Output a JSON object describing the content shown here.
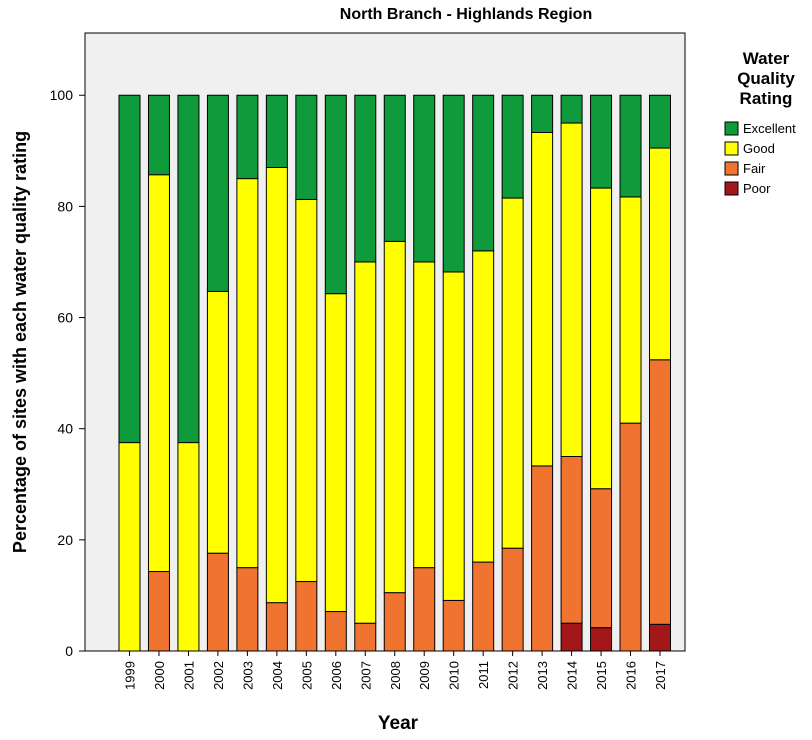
{
  "chart_data": {
    "type": "stacked_bar",
    "title": "North Branch - Highlands Region",
    "x_label": "Year",
    "y_label": "Percentage of sites with each water quality rating",
    "legend_title": [
      "Water",
      "Quality",
      "Rating"
    ],
    "categories": [
      "1999",
      "2000",
      "2001",
      "2002",
      "2003",
      "2004",
      "2005",
      "2006",
      "2007",
      "2008",
      "2009",
      "2010",
      "2011",
      "2012",
      "2013",
      "2014",
      "2015",
      "2016",
      "2017"
    ],
    "series": [
      {
        "name": "Poor",
        "color": "#a3171b",
        "values": [
          0,
          0,
          0,
          0,
          0,
          0,
          0,
          0,
          0,
          0,
          0,
          0,
          0,
          0,
          0,
          5,
          4.2,
          0,
          4.8
        ]
      },
      {
        "name": "Fair",
        "color": "#f0732f",
        "values": [
          0,
          14.3,
          0,
          17.6,
          15,
          8.7,
          12.5,
          7.1,
          5,
          10.5,
          15,
          9.1,
          16,
          18.5,
          33.3,
          30,
          25,
          41,
          47.6
        ]
      },
      {
        "name": "Good",
        "color": "#ffff00",
        "values": [
          37.5,
          71.4,
          37.5,
          47.1,
          70,
          78.3,
          68.75,
          57.2,
          65,
          63.2,
          55,
          59.1,
          56,
          63,
          60,
          60,
          54.1,
          40.7,
          38.1
        ]
      },
      {
        "name": "Excellent",
        "color": "#0f9a3c",
        "values": [
          62.5,
          14.3,
          62.5,
          35.3,
          15,
          13,
          18.75,
          35.7,
          30,
          26.3,
          30,
          31.8,
          28,
          18.5,
          6.7,
          5,
          16.7,
          18.3,
          9.5
        ]
      }
    ],
    "ylim": [
      0,
      111.2
    ],
    "yticks": [
      0,
      20,
      40,
      60,
      80,
      100
    ],
    "grid": false
  }
}
